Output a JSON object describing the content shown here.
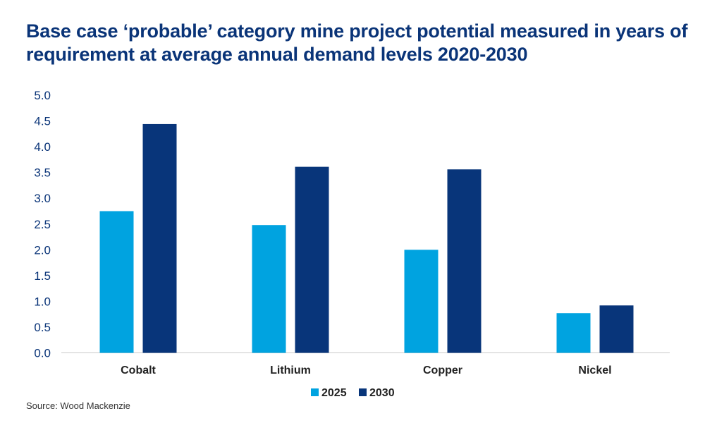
{
  "chart_data": {
    "type": "bar",
    "title": "Base case ‘probable’ category mine project potential measured in years of requirement at average annual demand levels 2020-2030",
    "categories": [
      "Cobalt",
      "Lithium",
      "Copper",
      "Nickel"
    ],
    "series": [
      {
        "name": "2025",
        "color": "#00a3e0",
        "values": [
          2.75,
          2.48,
          2.0,
          0.77
        ]
      },
      {
        "name": "2030",
        "color": "#08357a",
        "values": [
          4.44,
          3.61,
          3.56,
          0.92
        ]
      }
    ],
    "ylim": [
      0,
      5
    ],
    "yticks": [
      "0.0",
      "0.5",
      "1.0",
      "1.5",
      "2.0",
      "2.5",
      "3.0",
      "3.5",
      "4.0",
      "4.5",
      "5.0"
    ],
    "xlabel": "",
    "ylabel": "",
    "grid": false,
    "legend_position": "bottom"
  },
  "source": "Source: Wood Mackenzie"
}
